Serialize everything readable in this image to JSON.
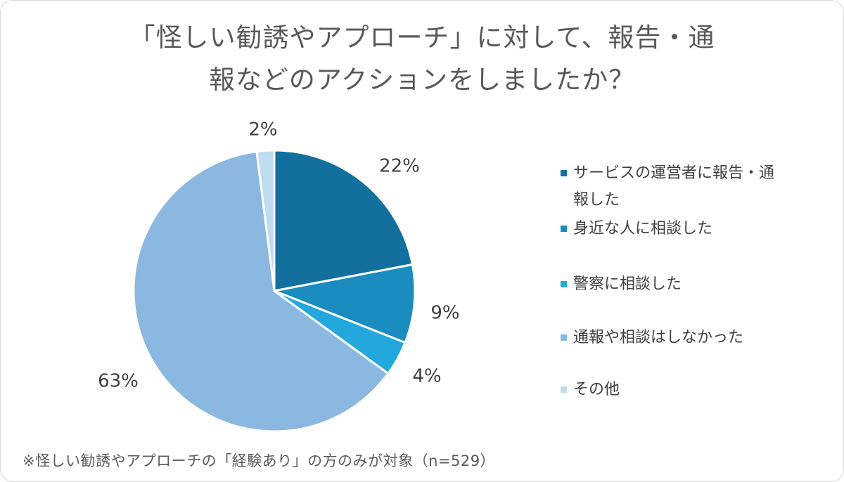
{
  "chart_data": {
    "type": "pie",
    "title_lines": [
      "「怪しい勧誘やアプローチ」に対して、報告・通",
      "報などのアクションをしましたか？"
    ],
    "categories": [
      "サービスの運営者に報告・通報した",
      "身近な人に相談した",
      "警察に相談した",
      "通報や相談はしなかった",
      "その他"
    ],
    "legend_lines": [
      [
        "サービスの運営者に報告・通",
        "報した"
      ],
      [
        "身近な人に相談した"
      ],
      [
        "警察に相談した"
      ],
      [
        "通報や相談はしなかった"
      ],
      [
        "その他"
      ]
    ],
    "values": [
      22,
      9,
      4,
      63,
      2
    ],
    "data_labels": [
      "22%",
      "9%",
      "4%",
      "63%",
      "2%"
    ],
    "colors": [
      "#136f9e",
      "#1a8cbf",
      "#22a8dc",
      "#8ab8e0",
      "#c0dcef"
    ],
    "legend_position": "right",
    "start_angle": "top",
    "direction": "clockwise"
  },
  "footnote": "※怪しい勧誘やアプローチの「経験あり」の方のみが対象（n=529）"
}
